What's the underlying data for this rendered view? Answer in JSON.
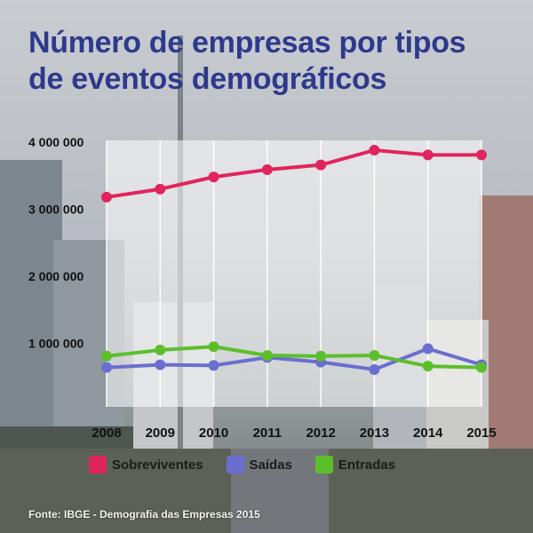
{
  "title_lines": [
    "Número de empresas por tipos",
    "de eventos demográficos"
  ],
  "source": "Fonte: IBGE - Demografia das Empresas 2015",
  "colors": {
    "title": "#2d3a8c",
    "sobreviventes": "#e0245e",
    "saidas": "#6a6ecf",
    "entradas": "#5bbf2c"
  },
  "chart_data": {
    "type": "line",
    "title": "Número de empresas por tipos de eventos demográficos",
    "x": [
      "2008",
      "2009",
      "2010",
      "2011",
      "2012",
      "2013",
      "2014",
      "2015"
    ],
    "y_ticks": [
      "4 000 000",
      "3 000 000",
      "2 000 000",
      "1 000 000"
    ],
    "ylim": [
      0,
      4000000
    ],
    "grid": true,
    "legend_position": "bottom",
    "series": [
      {
        "name": "Sobreviventes",
        "color": "#e0245e",
        "values": [
          3180000,
          3300000,
          3480000,
          3590000,
          3660000,
          3880000,
          3810000,
          3810000
        ]
      },
      {
        "name": "Saídas",
        "color": "#6a6ecf",
        "values": [
          640000,
          680000,
          670000,
          790000,
          720000,
          610000,
          920000,
          680000
        ]
      },
      {
        "name": "Entradas",
        "color": "#5bbf2c",
        "values": [
          810000,
          900000,
          950000,
          820000,
          810000,
          820000,
          660000,
          640000
        ]
      }
    ]
  }
}
